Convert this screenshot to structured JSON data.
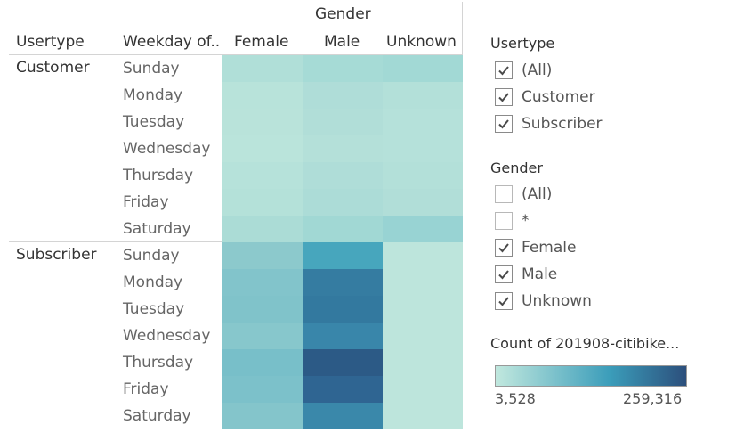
{
  "table": {
    "column_group_header": "Gender",
    "row_headers": [
      "Usertype",
      "Weekday of.."
    ],
    "gender_columns": [
      "Female",
      "Male",
      "Unknown"
    ],
    "groups": [
      {
        "usertype": "Customer",
        "rows": [
          {
            "weekday": "Sunday",
            "colors": [
              "#b0dfd8",
              "#a6dbd6",
              "#a2d9d5"
            ]
          },
          {
            "weekday": "Monday",
            "colors": [
              "#b8e3da",
              "#afddd8",
              "#b3e0d9"
            ]
          },
          {
            "weekday": "Tuesday",
            "colors": [
              "#b9e3da",
              "#b1ded8",
              "#b5e1da"
            ]
          },
          {
            "weekday": "Wednesday",
            "colors": [
              "#bae4db",
              "#b4e0d9",
              "#b5e1da"
            ]
          },
          {
            "weekday": "Thursday",
            "colors": [
              "#b6e2da",
              "#afddd8",
              "#b3e0d9"
            ]
          },
          {
            "weekday": "Friday",
            "colors": [
              "#b4e1d9",
              "#acdcd7",
              "#b1ded8"
            ]
          },
          {
            "weekday": "Saturday",
            "colors": [
              "#abdcd6",
              "#a1d8d4",
              "#98d3d3"
            ]
          }
        ]
      },
      {
        "usertype": "Subscriber",
        "rows": [
          {
            "weekday": "Sunday",
            "colors": [
              "#8cc9cc",
              "#47a6bd",
              "#bde5dc"
            ]
          },
          {
            "weekday": "Monday",
            "colors": [
              "#82c4cb",
              "#357ca1",
              "#bde5dc"
            ]
          },
          {
            "weekday": "Tuesday",
            "colors": [
              "#80c3ca",
              "#33799f",
              "#bde5dc"
            ]
          },
          {
            "weekday": "Wednesday",
            "colors": [
              "#87c7cc",
              "#3986aa",
              "#bde5dc"
            ]
          },
          {
            "weekday": "Thursday",
            "colors": [
              "#78bfc9",
              "#2c5a86",
              "#bde5dc"
            ]
          },
          {
            "weekday": "Friday",
            "colors": [
              "#7cc1ca",
              "#2f6592",
              "#bde5dc"
            ]
          },
          {
            "weekday": "Saturday",
            "colors": [
              "#84c5cb",
              "#3a88aa",
              "#bde5dc"
            ]
          }
        ]
      }
    ]
  },
  "filters": {
    "usertype": {
      "title": "Usertype",
      "items": [
        {
          "label": "(All)",
          "checked": true
        },
        {
          "label": "Customer",
          "checked": true
        },
        {
          "label": "Subscriber",
          "checked": true
        }
      ]
    },
    "gender": {
      "title": "Gender",
      "items": [
        {
          "label": "(All)",
          "checked": false
        },
        {
          "label": "*",
          "checked": false
        },
        {
          "label": "Female",
          "checked": true
        },
        {
          "label": "Male",
          "checked": true
        },
        {
          "label": "Unknown",
          "checked": true
        }
      ]
    }
  },
  "legend": {
    "title": "Count of 201908-citibike...",
    "min_label": "3,528",
    "max_label": "259,316",
    "gradient_start": "#c1e8de",
    "gradient_mid": "#3b9dba",
    "gradient_end": "#2c4f7c"
  },
  "colors": {
    "check": "#4a4a4a",
    "grid_line": "#d4d4d4"
  }
}
